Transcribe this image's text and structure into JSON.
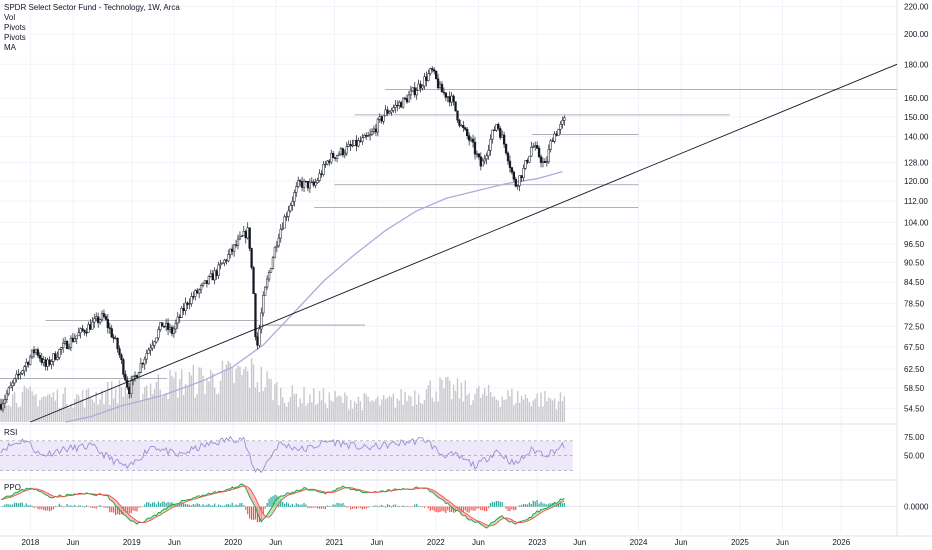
{
  "legend": {
    "title": "SPDR Select Sector Fund - Technology, 1W, Arca",
    "indicators": [
      "Vol",
      "Pivots",
      "Pivots",
      "MA"
    ]
  },
  "panes": {
    "rsi_label": "RSI",
    "ppo_label": "PPO"
  },
  "colors": {
    "up": "#26a69a",
    "down": "#ef5350",
    "candle": "#131722",
    "ma": "#b3a8dc",
    "rsi_line": "#9a8fd0",
    "rsi_band": "#ede9fa",
    "volume": "#c8c8cc",
    "pivot": "#9598a1",
    "trendline": "#131722",
    "grid": "#f0f3fa",
    "text": "#131722"
  },
  "chart_data": [
    {
      "type": "candlestick",
      "title": "SPDR Select Sector Fund - Technology, 1W, Arca",
      "scale": "log",
      "ylim": [
        52,
        225
      ],
      "y_ticks": [
        "220.00",
        "200.00",
        "180.00",
        "160.00",
        "150.00",
        "140.00",
        "128.00",
        "120.00",
        "112.00",
        "104.00",
        "96.50",
        "90.50",
        "84.50",
        "78.50",
        "72.50",
        "67.50",
        "62.50",
        "58.50",
        "54.50"
      ],
      "x_range": [
        2017.7,
        2026.55
      ],
      "x_ticks": [
        {
          "x": 2018.0,
          "label": "2018"
        },
        {
          "x": 2018.42,
          "label": "Jun"
        },
        {
          "x": 2019.0,
          "label": "2019"
        },
        {
          "x": 2019.42,
          "label": "Jun"
        },
        {
          "x": 2020.0,
          "label": "2020"
        },
        {
          "x": 2020.42,
          "label": "Jun"
        },
        {
          "x": 2021.0,
          "label": "2021"
        },
        {
          "x": 2021.42,
          "label": "Jun"
        },
        {
          "x": 2022.0,
          "label": "2022"
        },
        {
          "x": 2022.42,
          "label": "Jun"
        },
        {
          "x": 2023.0,
          "label": "2023"
        },
        {
          "x": 2023.42,
          "label": "Jun"
        },
        {
          "x": 2024.0,
          "label": "2024"
        },
        {
          "x": 2024.42,
          "label": "Jun"
        },
        {
          "x": 2025.0,
          "label": "2025"
        },
        {
          "x": 2025.42,
          "label": "Jun"
        },
        {
          "x": 2026.0,
          "label": "2026"
        }
      ],
      "price_anchors": [
        [
          2017.7,
          55
        ],
        [
          2017.85,
          60
        ],
        [
          2018.05,
          67
        ],
        [
          2018.15,
          63
        ],
        [
          2018.3,
          67
        ],
        [
          2018.55,
          72
        ],
        [
          2018.72,
          75
        ],
        [
          2018.85,
          68
        ],
        [
          2018.97,
          58
        ],
        [
          2019.1,
          64
        ],
        [
          2019.3,
          73
        ],
        [
          2019.4,
          71
        ],
        [
          2019.55,
          79
        ],
        [
          2019.7,
          83
        ],
        [
          2019.85,
          88
        ],
        [
          2020.05,
          97
        ],
        [
          2020.15,
          101
        ],
        [
          2020.2,
          82
        ],
        [
          2020.23,
          66
        ],
        [
          2020.3,
          80
        ],
        [
          2020.45,
          100
        ],
        [
          2020.65,
          119
        ],
        [
          2020.8,
          118
        ],
        [
          2020.95,
          130
        ],
        [
          2021.2,
          136
        ],
        [
          2021.35,
          140
        ],
        [
          2021.5,
          152
        ],
        [
          2021.7,
          159
        ],
        [
          2021.85,
          168
        ],
        [
          2021.96,
          176
        ],
        [
          2022.05,
          164
        ],
        [
          2022.15,
          160
        ],
        [
          2022.25,
          145
        ],
        [
          2022.35,
          137
        ],
        [
          2022.45,
          126
        ],
        [
          2022.6,
          147
        ],
        [
          2022.7,
          133
        ],
        [
          2022.78,
          118
        ],
        [
          2022.87,
          125
        ],
        [
          2022.95,
          136
        ],
        [
          2023.02,
          131
        ],
        [
          2023.08,
          126
        ],
        [
          2023.15,
          140
        ],
        [
          2023.22,
          144
        ],
        [
          2023.27,
          148
        ]
      ],
      "pivot_levels": [
        {
          "price": 60.5,
          "from": 2017.7,
          "to": 2019.35
        },
        {
          "price": 74.0,
          "from": 2018.15,
          "to": 2020.25
        },
        {
          "price": 72.8,
          "from": 2020.25,
          "to": 2021.3
        },
        {
          "price": 118.5,
          "from": 2021.0,
          "to": 2024.0
        },
        {
          "price": 109.5,
          "from": 2020.8,
          "to": 2024.0
        },
        {
          "price": 151.0,
          "from": 2021.2,
          "to": 2024.9
        },
        {
          "price": 165.0,
          "from": 2021.5,
          "to": 2026.55
        },
        {
          "price": 141.0,
          "from": 2022.95,
          "to": 2024.0
        }
      ],
      "trendline": [
        [
          2018.0,
          52
        ],
        [
          2026.55,
          180
        ]
      ],
      "ma": [
        [
          2018.35,
          52
        ],
        [
          2018.6,
          53
        ],
        [
          2018.9,
          55
        ],
        [
          2019.3,
          57
        ],
        [
          2019.7,
          60
        ],
        [
          2020.0,
          63
        ],
        [
          2020.3,
          68
        ],
        [
          2020.6,
          76
        ],
        [
          2020.9,
          85
        ],
        [
          2021.2,
          93
        ],
        [
          2021.5,
          101
        ],
        [
          2021.8,
          108
        ],
        [
          2022.1,
          113
        ],
        [
          2022.4,
          116
        ],
        [
          2022.7,
          119
        ],
        [
          2023.0,
          121
        ],
        [
          2023.25,
          124
        ]
      ],
      "volume_anchors": [
        [
          2017.7,
          0.55
        ],
        [
          2018.5,
          0.5
        ],
        [
          2019.0,
          0.7
        ],
        [
          2020.2,
          1.0
        ],
        [
          2020.5,
          0.55
        ],
        [
          2021.5,
          0.4
        ],
        [
          2022.0,
          0.7
        ],
        [
          2022.5,
          0.55
        ],
        [
          2023.27,
          0.45
        ]
      ]
    },
    {
      "type": "line",
      "name": "RSI",
      "ylim": [
        20,
        90
      ],
      "y_ticks": [
        "75.00",
        "50.00"
      ],
      "band": [
        30,
        70
      ],
      "anchors": [
        [
          2017.7,
          58
        ],
        [
          2017.95,
          72
        ],
        [
          2018.1,
          50
        ],
        [
          2018.3,
          58
        ],
        [
          2018.6,
          63
        ],
        [
          2018.8,
          45
        ],
        [
          2018.97,
          33
        ],
        [
          2019.2,
          64
        ],
        [
          2019.45,
          50
        ],
        [
          2019.7,
          63
        ],
        [
          2019.95,
          72
        ],
        [
          2020.1,
          74
        ],
        [
          2020.2,
          32
        ],
        [
          2020.28,
          30
        ],
        [
          2020.45,
          66
        ],
        [
          2020.7,
          58
        ],
        [
          2020.95,
          70
        ],
        [
          2021.3,
          60
        ],
        [
          2021.6,
          66
        ],
        [
          2021.9,
          72
        ],
        [
          2022.05,
          52
        ],
        [
          2022.2,
          50
        ],
        [
          2022.4,
          36
        ],
        [
          2022.6,
          57
        ],
        [
          2022.78,
          38
        ],
        [
          2022.95,
          58
        ],
        [
          2023.1,
          52
        ],
        [
          2023.27,
          64
        ]
      ]
    },
    {
      "type": "area",
      "name": "PPO",
      "ylim": [
        -4,
        4
      ],
      "y_ticks": [
        "0.0000"
      ],
      "anchors": [
        [
          2017.7,
          1.2
        ],
        [
          2018.0,
          3.0
        ],
        [
          2018.2,
          1.5
        ],
        [
          2018.5,
          2.0
        ],
        [
          2018.75,
          1.8
        ],
        [
          2018.9,
          -1.0
        ],
        [
          2019.05,
          -2.8
        ],
        [
          2019.25,
          -1.2
        ],
        [
          2019.45,
          0.6
        ],
        [
          2019.7,
          1.8
        ],
        [
          2019.95,
          2.6
        ],
        [
          2020.1,
          3.6
        ],
        [
          2020.2,
          0.5
        ],
        [
          2020.28,
          -2.6
        ],
        [
          2020.45,
          1.5
        ],
        [
          2020.7,
          2.8
        ],
        [
          2020.9,
          2.0
        ],
        [
          2021.1,
          3.2
        ],
        [
          2021.3,
          2.0
        ],
        [
          2021.6,
          2.6
        ],
        [
          2021.9,
          3.0
        ],
        [
          2022.05,
          1.2
        ],
        [
          2022.2,
          -0.6
        ],
        [
          2022.35,
          -2.2
        ],
        [
          2022.5,
          -3.2
        ],
        [
          2022.65,
          -1.5
        ],
        [
          2022.78,
          -2.8
        ],
        [
          2022.9,
          -2.2
        ],
        [
          2023.0,
          -0.8
        ],
        [
          2023.15,
          0.2
        ],
        [
          2023.27,
          1.5
        ]
      ]
    }
  ]
}
